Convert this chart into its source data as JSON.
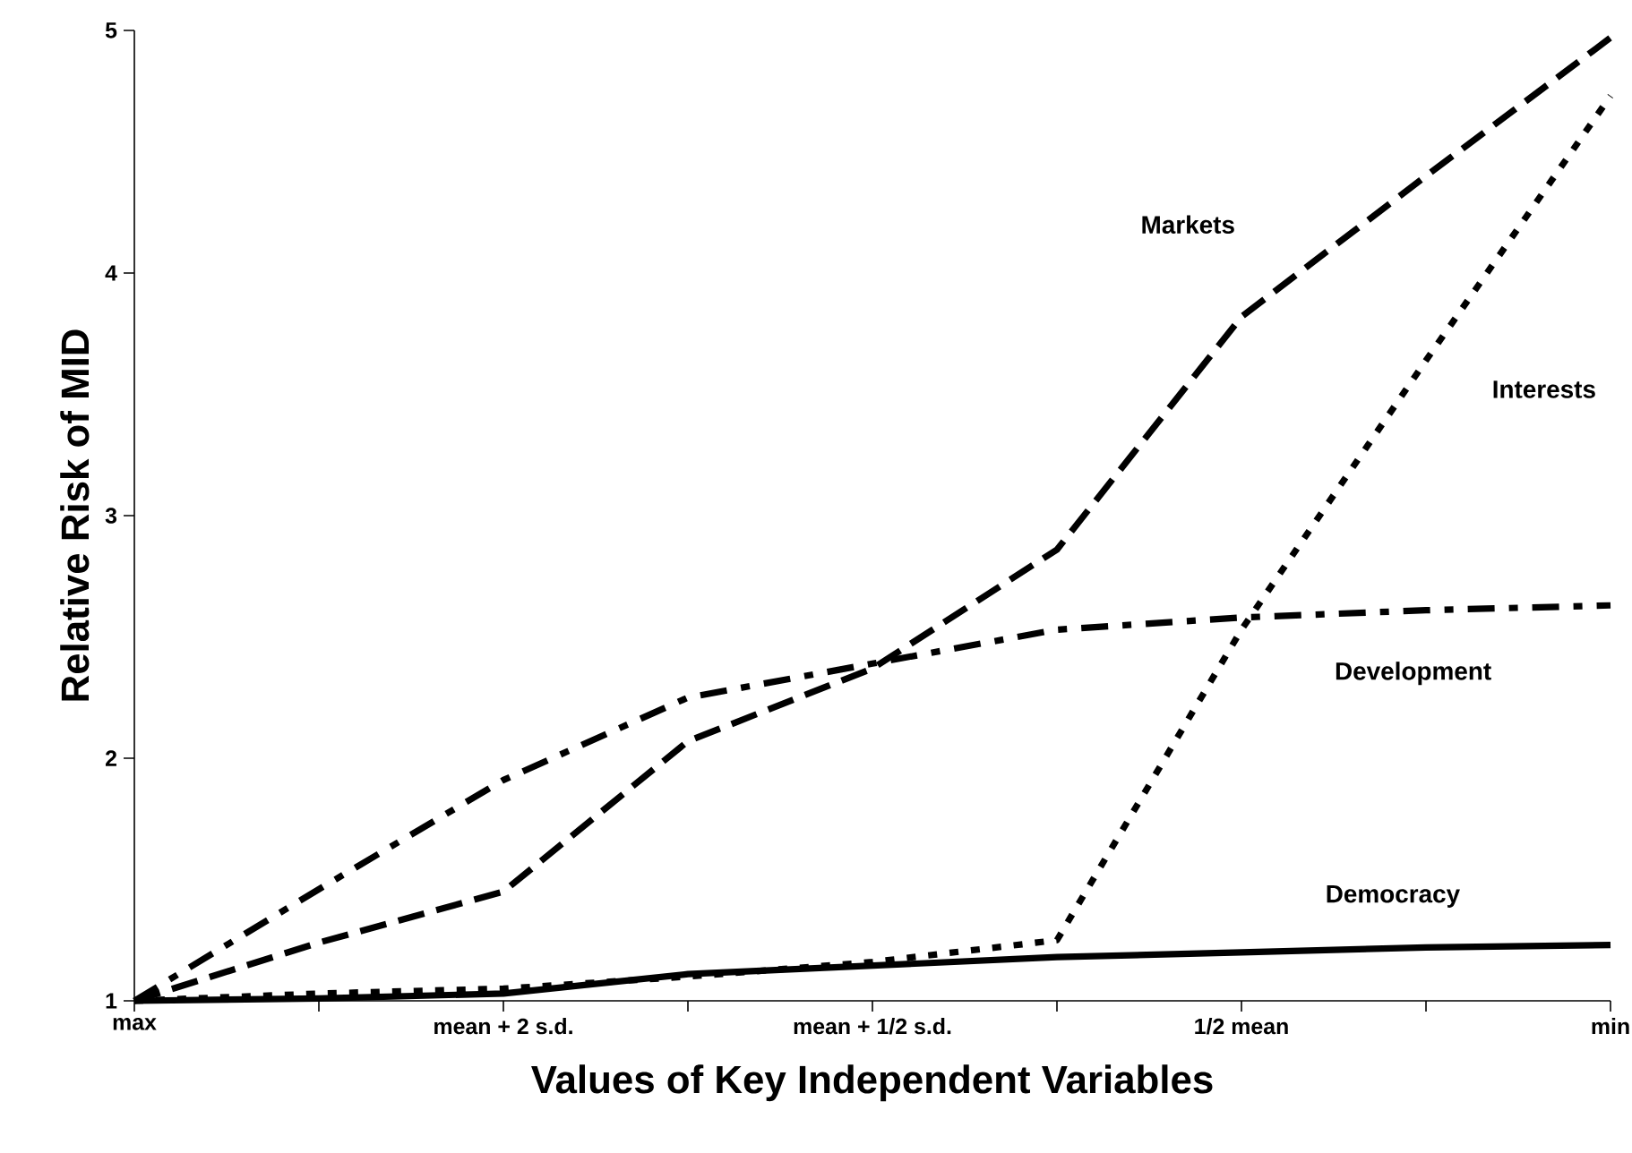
{
  "chart_data": {
    "type": "line",
    "xlabel": "Values of Key Independent Variables",
    "ylabel": "Relative Risk of MID",
    "categories": [
      "max",
      null,
      "mean + 2 s.d.",
      null,
      "mean + 1/2 s.d.",
      null,
      "1/2 mean",
      null,
      "min"
    ],
    "ylim": [
      1,
      5
    ],
    "yticks": [
      1,
      2,
      3,
      4,
      5
    ],
    "marker": "none",
    "series": [
      {
        "name": "Markets",
        "color": "#000000",
        "line_style": "dashed",
        "values": [
          1.0,
          1.24,
          1.45,
          2.07,
          2.37,
          2.86,
          3.82,
          4.4,
          4.97
        ]
      },
      {
        "name": "Interests",
        "color": "#000000",
        "line_style": "dotted",
        "values": [
          1.0,
          1.03,
          1.05,
          1.1,
          1.16,
          1.25,
          2.53,
          3.64,
          4.73
        ]
      },
      {
        "name": "Development",
        "color": "#000000",
        "line_style": "dashdot",
        "values": [
          1.0,
          1.46,
          1.91,
          2.25,
          2.39,
          2.53,
          2.58,
          2.61,
          2.63
        ]
      },
      {
        "name": "Democracy",
        "color": "#000000",
        "line_style": "solid",
        "values": [
          1.0,
          1.01,
          1.03,
          1.11,
          1.145,
          1.18,
          1.2,
          1.22,
          1.23
        ]
      }
    ]
  }
}
